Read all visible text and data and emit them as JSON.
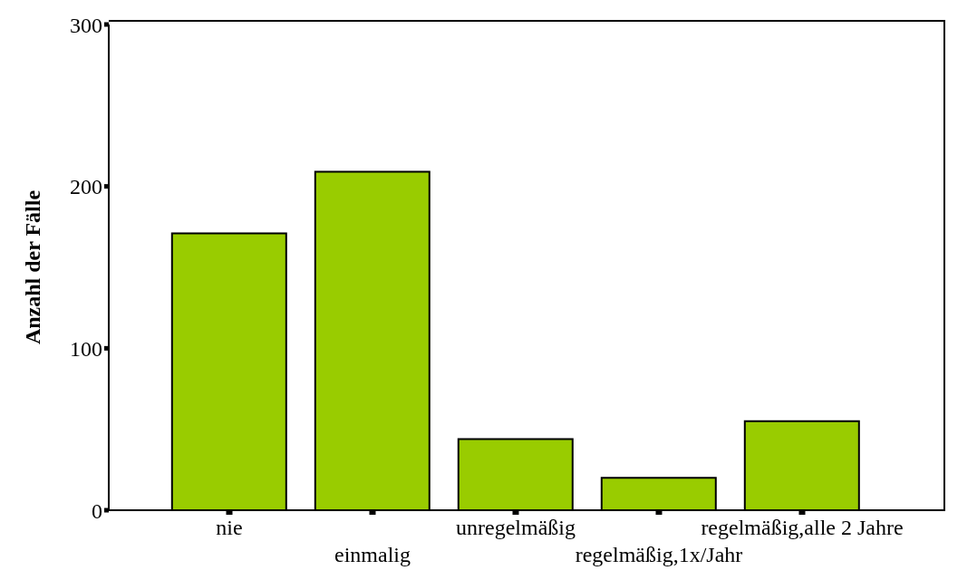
{
  "chart_data": {
    "type": "bar",
    "ylabel": "Anzahl der Fälle",
    "categories": [
      "nie",
      "einmalig",
      "unregelmäßig",
      "regelmäßig,1x/Jahr",
      "regelmäßig,alle 2 Jahre"
    ],
    "values": [
      171,
      209,
      44,
      20,
      55
    ],
    "color": "#99cc00",
    "ylim": [
      0,
      300
    ],
    "yticks": [
      0,
      100,
      200,
      300
    ],
    "grid": false
  }
}
